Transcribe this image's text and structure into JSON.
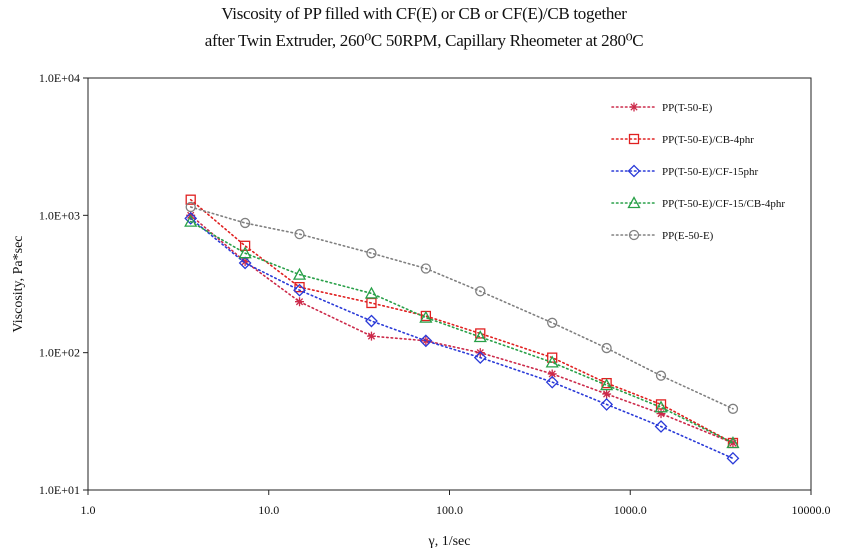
{
  "chart_data": {
    "type": "line",
    "title": "Viscosity of PP filled with CF(E) or CB or CF(E)/CB together",
    "subtitle": "after Twin Extruder, 260⁰C 50RPM, Capillary Rheometer at 280⁰C",
    "xlabel": "γ, 1/sec",
    "ylabel": "Viscosity, Pa*sec",
    "x_scale": "log",
    "y_scale": "log",
    "xlim": [
      1,
      10000
    ],
    "ylim": [
      10,
      10000
    ],
    "x_ticks": [
      1,
      10,
      100,
      1000,
      10000
    ],
    "x_tick_labels": [
      "1.0",
      "10.0",
      "100.0",
      "1000.0",
      "10000.0"
    ],
    "y_ticks": [
      10,
      100,
      1000,
      10000
    ],
    "y_tick_labels": [
      "1.0E+01",
      "1.0E+02",
      "1.0E+03",
      "1.0E+04"
    ],
    "grid": false,
    "legend_position": "top-right",
    "series": [
      {
        "name": "PP(T-50-E)",
        "color": "#cc2a4a",
        "marker": "star",
        "x": [
          3.7,
          7.4,
          14.8,
          37,
          74,
          148,
          370,
          740,
          1480,
          3700
        ],
        "y": [
          1000,
          460,
          235,
          132,
          122,
          100,
          70,
          50,
          36,
          22
        ]
      },
      {
        "name": "PP(T-50-E)/CB-4phr",
        "color": "#e02020",
        "marker": "square",
        "x": [
          3.7,
          7.4,
          14.8,
          37,
          74,
          148,
          370,
          740,
          1480,
          3700
        ],
        "y": [
          1300,
          600,
          300,
          230,
          185,
          138,
          92,
          60,
          42,
          22
        ]
      },
      {
        "name": "PP(T-50-E)/CF-15phr",
        "color": "#2a3ad8",
        "marker": "diamond",
        "x": [
          3.7,
          7.4,
          14.8,
          37,
          74,
          148,
          370,
          740,
          1480,
          3700
        ],
        "y": [
          950,
          450,
          285,
          170,
          122,
          92,
          61,
          42,
          29,
          17
        ]
      },
      {
        "name": "PP(T-50-E)/CF-15/CB-4phr",
        "color": "#28a048",
        "marker": "triangle",
        "x": [
          3.7,
          7.4,
          14.8,
          37,
          74,
          148,
          370,
          740,
          1480,
          3700
        ],
        "y": [
          900,
          530,
          370,
          270,
          180,
          130,
          85,
          58,
          40,
          22
        ]
      },
      {
        "name": "PP(E-50-E)",
        "color": "#808080",
        "marker": "circle",
        "x": [
          3.7,
          7.4,
          14.8,
          37,
          74,
          148,
          370,
          740,
          1480,
          3700
        ],
        "y": [
          1150,
          880,
          730,
          530,
          410,
          280,
          165,
          108,
          68,
          39
        ]
      }
    ]
  }
}
